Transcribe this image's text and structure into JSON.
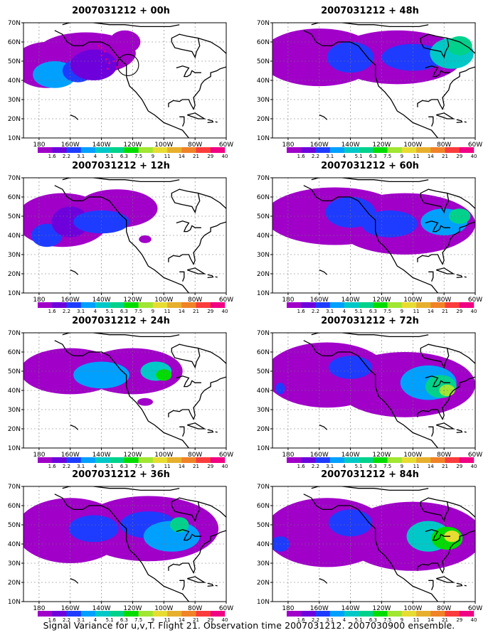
{
  "caption": "Signal Variance for u,v,T. Flight 21. Observation time 2007031212. 2007030900 ensemble.",
  "lon_ticks": [
    "180",
    "160W",
    "140W",
    "120W",
    "100W",
    "80W",
    "60W"
  ],
  "lat_ticks": [
    "70N",
    "60N",
    "50N",
    "40N",
    "30N",
    "20N",
    "10N"
  ],
  "colorbar_labels": [
    "1.6",
    "2.2",
    "3.1",
    "4",
    "5.1",
    "6.3",
    "7.5",
    "9",
    "11",
    "14",
    "21",
    "29",
    "40"
  ],
  "colorbar_colors": [
    "#a000c8",
    "#6e00dc",
    "#1e3cff",
    "#00a0ff",
    "#00c8c8",
    "#00d28c",
    "#00dc00",
    "#a0e632",
    "#e6dc32",
    "#e6af2d",
    "#f08228",
    "#fa3c3c",
    "#f00082"
  ],
  "panels": [
    {
      "title": "2007031212 + 00h"
    },
    {
      "title": "2007031212 + 48h"
    },
    {
      "title": "2007031212 + 12h"
    },
    {
      "title": "2007031212 + 60h"
    },
    {
      "title": "2007031212 + 24h"
    },
    {
      "title": "2007031212 + 72h"
    },
    {
      "title": "2007031212 + 36h"
    },
    {
      "title": "2007031212 + 84h"
    }
  ]
}
